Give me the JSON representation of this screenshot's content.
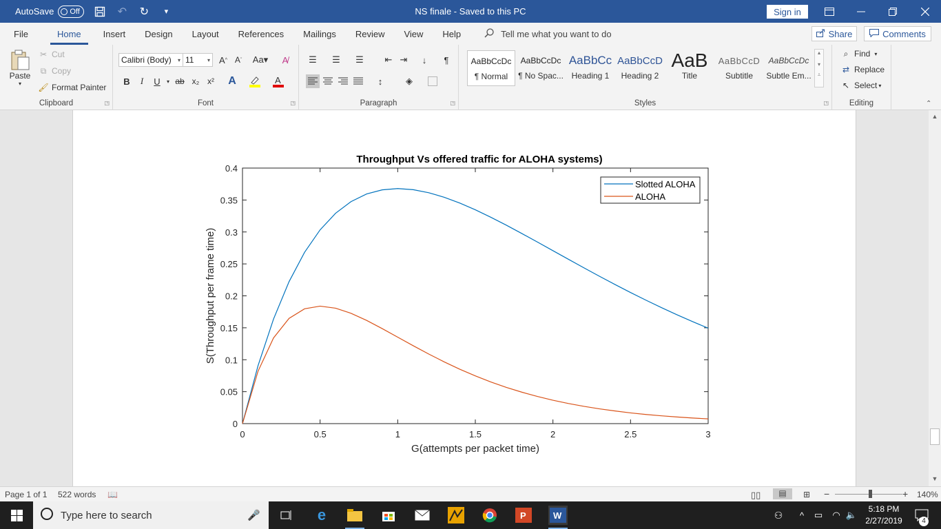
{
  "titlebar": {
    "autosave_label": "AutoSave",
    "autosave_state": "Off",
    "doc_title": "NS finale  -  Saved to this PC",
    "sign_in": "Sign in"
  },
  "menu": {
    "tabs": [
      "File",
      "Home",
      "Insert",
      "Design",
      "Layout",
      "References",
      "Mailings",
      "Review",
      "View",
      "Help"
    ],
    "active_tab": "Home",
    "tell_me": "Tell me what you want to do",
    "share": "Share",
    "comments": "Comments"
  },
  "ribbon": {
    "clipboard": {
      "label": "Clipboard",
      "paste": "Paste",
      "cut": "Cut",
      "copy": "Copy",
      "format_painter": "Format Painter"
    },
    "font": {
      "label": "Font",
      "font_name": "Calibri (Body)",
      "font_size": "11"
    },
    "paragraph": {
      "label": "Paragraph"
    },
    "styles": {
      "label": "Styles",
      "items": [
        {
          "preview": "AaBbCcDc",
          "name": "¶ Normal"
        },
        {
          "preview": "AaBbCcDc",
          "name": "¶ No Spac..."
        },
        {
          "preview": "AaBbCc",
          "name": "Heading 1"
        },
        {
          "preview": "AaBbCcD",
          "name": "Heading 2"
        },
        {
          "preview": "AaB",
          "name": "Title"
        },
        {
          "preview": "AaBbCcD",
          "name": "Subtitle"
        },
        {
          "preview": "AaBbCcDc",
          "name": "Subtle Em..."
        }
      ]
    },
    "editing": {
      "label": "Editing",
      "find": "Find",
      "replace": "Replace",
      "select": "Select"
    }
  },
  "status": {
    "page": "Page 1 of 1",
    "words": "522 words",
    "zoom": "140%"
  },
  "taskbar": {
    "search_placeholder": "Type here to search",
    "time": "5:18 PM",
    "date": "2/27/2019",
    "notifications": "4"
  },
  "colors": {
    "word_blue": "#2b579a",
    "series1": "#0072bd",
    "series2": "#d95319"
  },
  "chart_data": {
    "type": "line",
    "title": "Throughput Vs offered traffic for ALOHA systems)",
    "xlabel": "G(attempts per packet time)",
    "ylabel": "S(Throughput per frame time)",
    "xlim": [
      0,
      3
    ],
    "ylim": [
      0,
      0.4
    ],
    "xticks": [
      "0",
      "0.5",
      "1",
      "1.5",
      "2",
      "2.5",
      "3"
    ],
    "yticks": [
      "0",
      "0.05",
      "0.1",
      "0.15",
      "0.2",
      "0.25",
      "0.3",
      "0.35",
      "0.4"
    ],
    "legend_position": "top-right",
    "x": [
      0,
      0.1,
      0.2,
      0.3,
      0.4,
      0.5,
      0.6,
      0.7,
      0.8,
      0.9,
      1.0,
      1.1,
      1.2,
      1.3,
      1.4,
      1.5,
      1.6,
      1.7,
      1.8,
      1.9,
      2.0,
      2.1,
      2.2,
      2.3,
      2.4,
      2.5,
      2.6,
      2.7,
      2.8,
      2.9,
      3.0
    ],
    "series": [
      {
        "name": "Slotted ALOHA",
        "color": "#0072bd",
        "values": [
          0,
          0.0905,
          0.1637,
          0.2222,
          0.2681,
          0.3033,
          0.3293,
          0.3476,
          0.3595,
          0.3659,
          0.3679,
          0.3662,
          0.3614,
          0.3543,
          0.3452,
          0.3347,
          0.323,
          0.3106,
          0.2975,
          0.2842,
          0.2707,
          0.2572,
          0.2438,
          0.2306,
          0.2177,
          0.2052,
          0.1931,
          0.1815,
          0.1703,
          0.1596,
          0.1494
        ]
      },
      {
        "name": "ALOHA",
        "color": "#d95319",
        "values": [
          0,
          0.0819,
          0.1341,
          0.1647,
          0.1797,
          0.1839,
          0.1807,
          0.1726,
          0.1615,
          0.1487,
          0.1353,
          0.1219,
          0.1089,
          0.0966,
          0.0851,
          0.0747,
          0.0652,
          0.0567,
          0.0492,
          0.0425,
          0.0366,
          0.0315,
          0.027,
          0.0231,
          0.0198,
          0.0168,
          0.0143,
          0.0122,
          0.0104,
          0.0088,
          0.0074
        ]
      }
    ]
  }
}
